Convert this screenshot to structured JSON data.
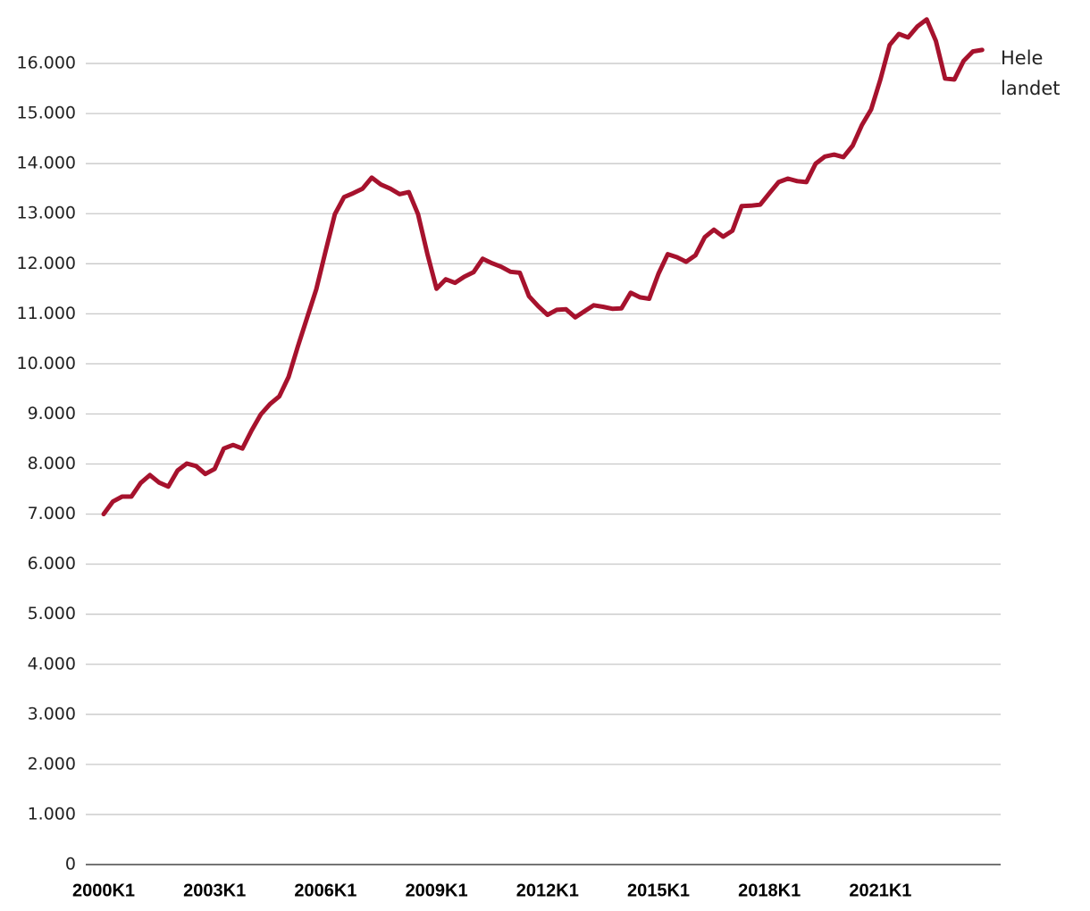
{
  "chart_data": {
    "type": "line",
    "categories": [
      "2000K1",
      null,
      null,
      null,
      null,
      null,
      null,
      null,
      null,
      null,
      null,
      null,
      "2003K1",
      null,
      null,
      null,
      null,
      null,
      null,
      null,
      null,
      null,
      null,
      null,
      "2006K1",
      null,
      null,
      null,
      null,
      null,
      null,
      null,
      null,
      null,
      null,
      null,
      "2009K1",
      null,
      null,
      null,
      null,
      null,
      null,
      null,
      null,
      null,
      null,
      null,
      "2012K1",
      null,
      null,
      null,
      null,
      null,
      null,
      null,
      null,
      null,
      null,
      null,
      "2015K1",
      null,
      null,
      null,
      null,
      null,
      null,
      null,
      null,
      null,
      null,
      null,
      "2018K1",
      null,
      null,
      null,
      null,
      null,
      null,
      null,
      null,
      null,
      null,
      null,
      "2021K1",
      null,
      null,
      null,
      null,
      null,
      null,
      null,
      null,
      null,
      null,
      null
    ],
    "series": [
      {
        "name": "Hele landet",
        "color": "#a6122d",
        "values": [
          7000,
          7250,
          7350,
          7350,
          7620,
          7780,
          7630,
          7550,
          7870,
          8010,
          7960,
          7800,
          7900,
          8310,
          8380,
          8310,
          8670,
          8990,
          9200,
          9350,
          9740,
          10350,
          10920,
          11490,
          12250,
          12990,
          13330,
          13410,
          13500,
          13720,
          13580,
          13500,
          13390,
          13430,
          12990,
          12200,
          11500,
          11690,
          11620,
          11740,
          11830,
          12100,
          12010,
          11940,
          11840,
          11820,
          11350,
          11150,
          10980,
          11080,
          11090,
          10930,
          11050,
          11170,
          11140,
          11100,
          11110,
          11420,
          11330,
          11300,
          11800,
          12190,
          12130,
          12040,
          12170,
          12530,
          12680,
          12540,
          12660,
          13150,
          13160,
          13180,
          13410,
          13630,
          13700,
          13650,
          13630,
          14000,
          14140,
          14180,
          14130,
          14360,
          14770,
          15080,
          15680,
          16370,
          16590,
          16520,
          16740,
          16880,
          16450,
          15700,
          15680,
          16050,
          16240,
          16270
        ]
      }
    ],
    "ylim": [
      0,
      17000
    ],
    "yticks": [
      0,
      {
        "value": 1000,
        "label": "1.000"
      },
      {
        "value": 2000,
        "label": "2.000"
      },
      {
        "value": 3000,
        "label": "3.000"
      },
      {
        "value": 4000,
        "label": "4.000"
      },
      {
        "value": 5000,
        "label": "5.000"
      },
      {
        "value": 6000,
        "label": "6.000"
      },
      {
        "value": 7000,
        "label": "7.000"
      },
      {
        "value": 8000,
        "label": "8.000"
      },
      {
        "value": 9000,
        "label": "9.000"
      },
      {
        "value": 10000,
        "label": "10.000"
      },
      {
        "value": 11000,
        "label": "11.000"
      },
      {
        "value": 12000,
        "label": "12.000"
      },
      {
        "value": 13000,
        "label": "13.000"
      },
      {
        "value": 14000,
        "label": "14.000"
      },
      {
        "value": 15000,
        "label": "15.000"
      },
      {
        "value": 16000,
        "label": "16.000"
      }
    ],
    "grid": true
  }
}
